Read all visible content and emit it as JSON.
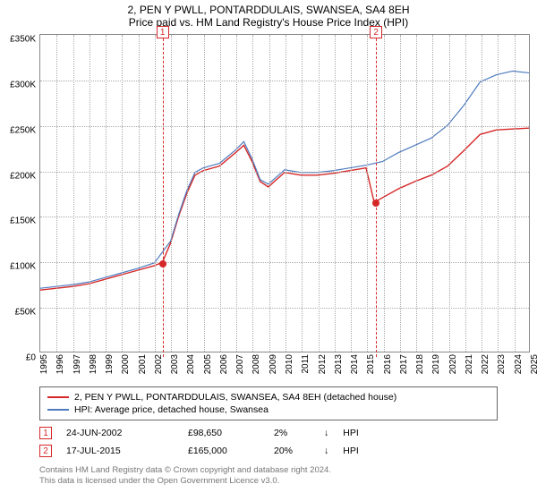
{
  "header": {
    "title": "2, PEN Y PWLL, PONTARDDULAIS, SWANSEA, SA4 8EH",
    "subtitle": "Price paid vs. HM Land Registry's House Price Index (HPI)"
  },
  "chart": {
    "type": "line",
    "background_color": "#ffffff",
    "grid_color": "#aaaaaa",
    "border_color": "#888888",
    "y": {
      "min": 0,
      "max": 350000,
      "tick_step": 50000,
      "ticks": [
        "£0",
        "£50K",
        "£100K",
        "£150K",
        "£200K",
        "£250K",
        "£300K",
        "£350K"
      ]
    },
    "x": {
      "min": 1995,
      "max": 2025,
      "ticks": [
        1995,
        1996,
        1997,
        1998,
        1999,
        2000,
        2001,
        2002,
        2003,
        2004,
        2005,
        2006,
        2007,
        2008,
        2009,
        2010,
        2011,
        2012,
        2013,
        2014,
        2015,
        2016,
        2017,
        2018,
        2019,
        2020,
        2021,
        2022,
        2023,
        2024,
        2025
      ]
    },
    "series": [
      {
        "name": "2, PEN Y PWLL, PONTARDDULAIS, SWANSEA, SA4 8EH (detached house)",
        "color": "#d62728",
        "line_width": 1.4,
        "points": [
          [
            1995,
            68000
          ],
          [
            1996,
            70000
          ],
          [
            1997,
            72000
          ],
          [
            1998,
            75000
          ],
          [
            1999,
            80000
          ],
          [
            2000,
            85000
          ],
          [
            2001,
            90000
          ],
          [
            2002,
            95000
          ],
          [
            2002.5,
            98650
          ],
          [
            2003,
            120000
          ],
          [
            2003.5,
            150000
          ],
          [
            2004,
            175000
          ],
          [
            2004.5,
            195000
          ],
          [
            2005,
            200000
          ],
          [
            2006,
            205000
          ],
          [
            2007,
            220000
          ],
          [
            2007.5,
            228000
          ],
          [
            2008,
            210000
          ],
          [
            2008.5,
            188000
          ],
          [
            2009,
            182000
          ],
          [
            2009.5,
            190000
          ],
          [
            2010,
            198000
          ],
          [
            2011,
            195000
          ],
          [
            2012,
            195000
          ],
          [
            2013,
            197000
          ],
          [
            2014,
            200000
          ],
          [
            2015,
            203000
          ],
          [
            2015.5,
            165000
          ],
          [
            2016,
            170000
          ],
          [
            2017,
            180000
          ],
          [
            2018,
            188000
          ],
          [
            2019,
            195000
          ],
          [
            2020,
            205000
          ],
          [
            2021,
            222000
          ],
          [
            2022,
            240000
          ],
          [
            2023,
            245000
          ],
          [
            2024,
            246000
          ],
          [
            2025,
            247000
          ]
        ]
      },
      {
        "name": "HPI: Average price, detached house, Swansea",
        "color": "#4f7bbf",
        "line_width": 1.2,
        "points": [
          [
            1995,
            70000
          ],
          [
            1996,
            72000
          ],
          [
            1997,
            74000
          ],
          [
            1998,
            77000
          ],
          [
            1999,
            82000
          ],
          [
            2000,
            87000
          ],
          [
            2001,
            92000
          ],
          [
            2002,
            98000
          ],
          [
            2003,
            122000
          ],
          [
            2003.5,
            152000
          ],
          [
            2004,
            178000
          ],
          [
            2004.5,
            198000
          ],
          [
            2005,
            203000
          ],
          [
            2006,
            208000
          ],
          [
            2007,
            223000
          ],
          [
            2007.5,
            232000
          ],
          [
            2008,
            213000
          ],
          [
            2008.5,
            190000
          ],
          [
            2009,
            185000
          ],
          [
            2009.5,
            193000
          ],
          [
            2010,
            201000
          ],
          [
            2011,
            198000
          ],
          [
            2012,
            198000
          ],
          [
            2013,
            200000
          ],
          [
            2014,
            203000
          ],
          [
            2015,
            206000
          ],
          [
            2016,
            210000
          ],
          [
            2017,
            220000
          ],
          [
            2018,
            228000
          ],
          [
            2019,
            236000
          ],
          [
            2020,
            250000
          ],
          [
            2021,
            272000
          ],
          [
            2022,
            298000
          ],
          [
            2023,
            306000
          ],
          [
            2024,
            310000
          ],
          [
            2025,
            308000
          ]
        ]
      }
    ],
    "markers": [
      {
        "id": "1",
        "x": 2002.48,
        "point_y": 98650
      },
      {
        "id": "2",
        "x": 2015.54,
        "point_y": 165000
      }
    ]
  },
  "legend": {
    "items": [
      {
        "color": "#d62728",
        "label": "2, PEN Y PWLL, PONTARDDULAIS, SWANSEA, SA4 8EH (detached house)"
      },
      {
        "color": "#4f7bbf",
        "label": "HPI: Average price, detached house, Swansea"
      }
    ]
  },
  "sales": [
    {
      "badge": "1",
      "date": "24-JUN-2002",
      "price": "£98,650",
      "pct": "2%",
      "arrow": "↓",
      "hpi_label": "HPI"
    },
    {
      "badge": "2",
      "date": "17-JUL-2015",
      "price": "£165,000",
      "pct": "20%",
      "arrow": "↓",
      "hpi_label": "HPI"
    }
  ],
  "footer": {
    "line1": "Contains HM Land Registry data © Crown copyright and database right 2024.",
    "line2": "This data is licensed under the Open Government Licence v3.0."
  }
}
